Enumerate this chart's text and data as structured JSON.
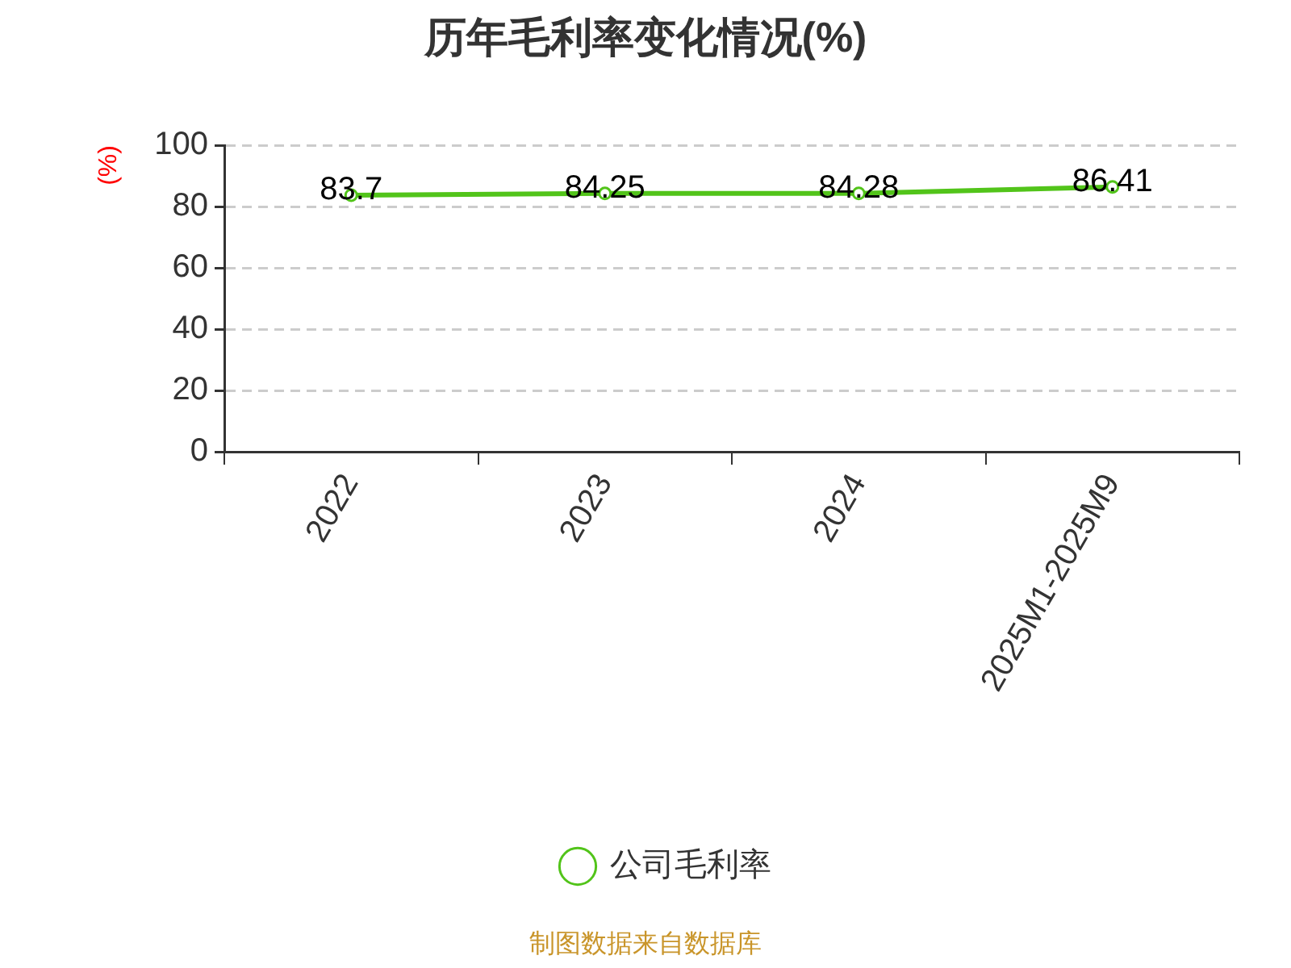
{
  "chart_data": {
    "type": "line",
    "title": "历年毛利率变化情况(%)",
    "ylabel": "(%)",
    "categories": [
      "2022",
      "2023",
      "2024",
      "2025M1-2025M9"
    ],
    "series": [
      {
        "name": "公司毛利率",
        "color": "#52c41a",
        "values": [
          83.7,
          84.25,
          84.28,
          86.41
        ]
      }
    ],
    "ylim": [
      0,
      100
    ],
    "yticks": [
      0,
      20,
      40,
      60,
      80,
      100
    ],
    "grid": "y",
    "legend": "bottom",
    "marker": "circle",
    "line_style": "solid",
    "data_labels": true,
    "annotations": [
      "制图数据来自数据库"
    ]
  }
}
